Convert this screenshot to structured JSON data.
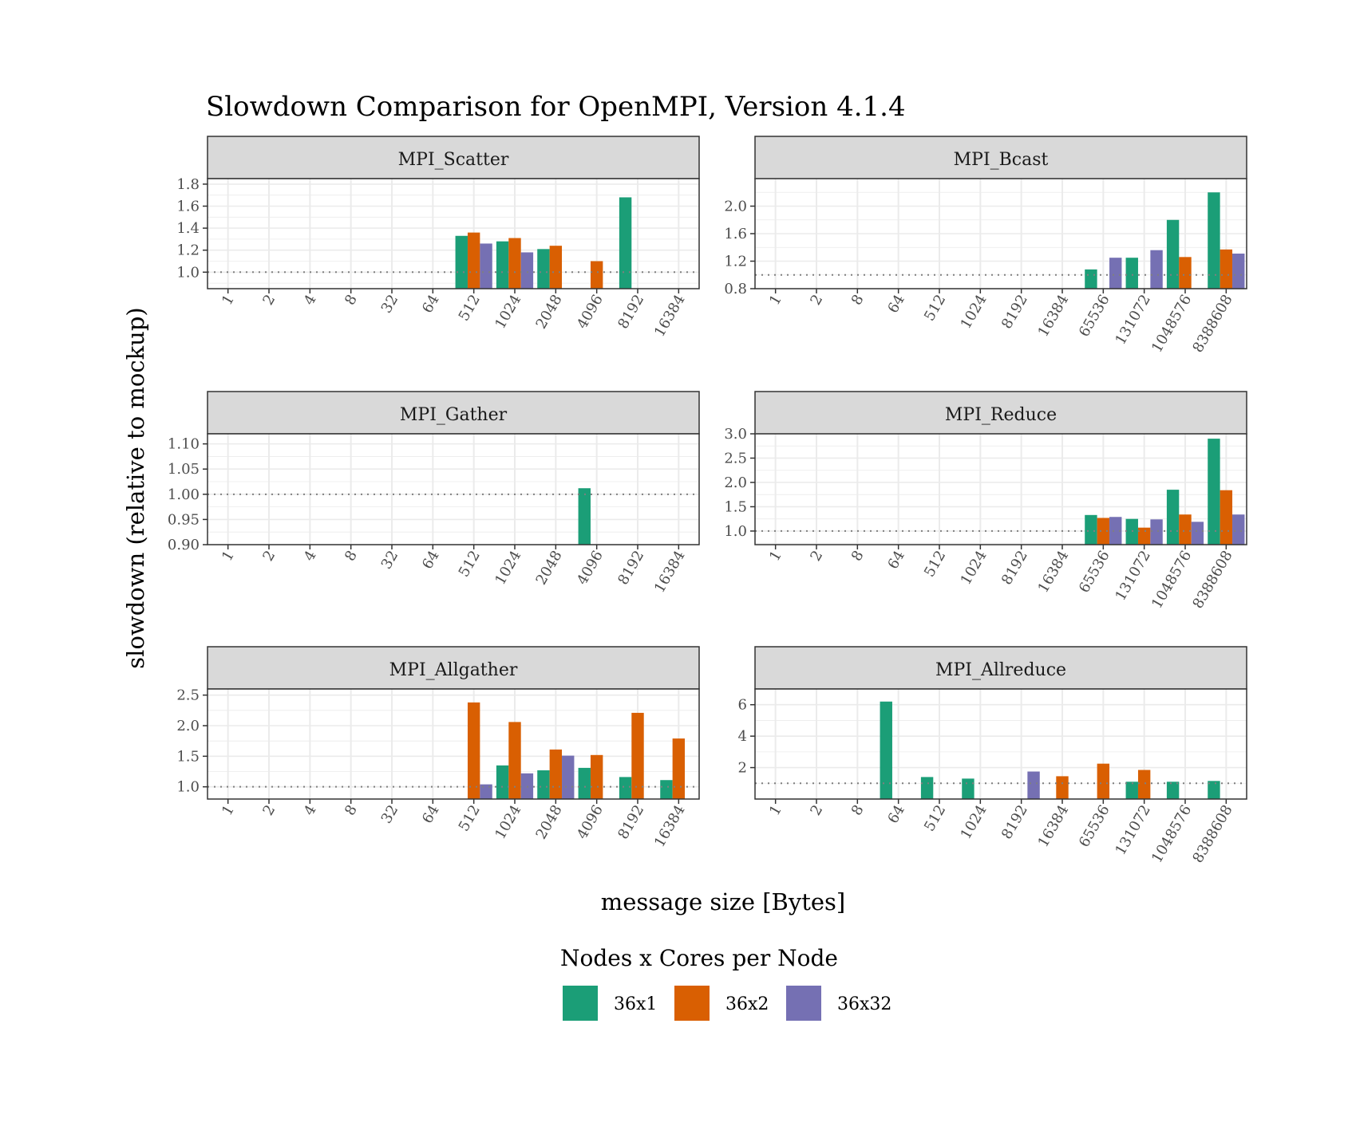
{
  "title": "Slowdown Comparison for OpenMPI, Version 4.1.4",
  "ylabel": "slowdown (relative to mockup)",
  "xlabel": "message size [Bytes]",
  "legend": {
    "title": "Nodes x Cores per Node",
    "position": "bottom",
    "entries": [
      {
        "name": "36x1",
        "color": "#1b9e77"
      },
      {
        "name": "36x2",
        "color": "#d95f02"
      },
      {
        "name": "36x32",
        "color": "#7570b3"
      }
    ]
  },
  "chart_data": [
    {
      "type": "bar",
      "title": "MPI_Scatter",
      "categories": [
        "1",
        "2",
        "4",
        "8",
        "32",
        "64",
        "512",
        "1024",
        "2048",
        "4096",
        "8192",
        "16384"
      ],
      "ylim": [
        0.85,
        1.85
      ],
      "yticks": [
        1.0,
        1.2,
        1.4,
        1.6,
        1.8
      ],
      "reference_line": 1.0,
      "series": [
        {
          "name": "36x1",
          "values": [
            null,
            null,
            null,
            null,
            null,
            null,
            1.33,
            1.28,
            1.21,
            null,
            1.68,
            null
          ]
        },
        {
          "name": "36x2",
          "values": [
            null,
            null,
            null,
            null,
            null,
            null,
            1.36,
            1.31,
            1.24,
            1.1,
            null,
            null
          ]
        },
        {
          "name": "36x32",
          "values": [
            null,
            null,
            null,
            null,
            null,
            null,
            1.26,
            1.18,
            null,
            null,
            null,
            null
          ]
        }
      ]
    },
    {
      "type": "bar",
      "title": "MPI_Bcast",
      "categories": [
        "1",
        "2",
        "8",
        "64",
        "512",
        "1024",
        "8192",
        "16384",
        "65536",
        "131072",
        "1048576",
        "8388608"
      ],
      "ylim": [
        0.8,
        2.4
      ],
      "yticks": [
        0.8,
        1.2,
        1.6,
        2.0
      ],
      "reference_line": 1.0,
      "series": [
        {
          "name": "36x1",
          "values": [
            null,
            null,
            null,
            null,
            null,
            null,
            null,
            null,
            1.08,
            1.25,
            1.8,
            2.2
          ]
        },
        {
          "name": "36x2",
          "values": [
            null,
            null,
            null,
            null,
            null,
            null,
            null,
            null,
            null,
            null,
            1.26,
            1.37
          ]
        },
        {
          "name": "36x32",
          "values": [
            null,
            null,
            null,
            null,
            null,
            null,
            null,
            null,
            1.25,
            1.36,
            null,
            1.31
          ]
        }
      ]
    },
    {
      "type": "bar",
      "title": "MPI_Gather",
      "categories": [
        "1",
        "2",
        "4",
        "8",
        "32",
        "64",
        "512",
        "1024",
        "2048",
        "4096",
        "8192",
        "16384"
      ],
      "ylim": [
        0.9,
        1.12
      ],
      "yticks": [
        0.9,
        0.95,
        1.0,
        1.05,
        1.1
      ],
      "ytick_labels": [
        "0.90",
        "0.95",
        "1.00",
        "1.05",
        "1.10"
      ],
      "reference_line": 1.0,
      "series": [
        {
          "name": "36x1",
          "values": [
            null,
            null,
            null,
            null,
            null,
            null,
            null,
            null,
            null,
            1.012,
            null,
            null
          ]
        },
        {
          "name": "36x2",
          "values": [
            null,
            null,
            null,
            null,
            null,
            null,
            null,
            null,
            null,
            null,
            null,
            null
          ]
        },
        {
          "name": "36x32",
          "values": [
            null,
            null,
            null,
            null,
            null,
            null,
            null,
            null,
            null,
            null,
            null,
            null
          ]
        }
      ]
    },
    {
      "type": "bar",
      "title": "MPI_Reduce",
      "categories": [
        "1",
        "2",
        "8",
        "64",
        "512",
        "1024",
        "8192",
        "16384",
        "65536",
        "131072",
        "1048576",
        "8388608"
      ],
      "ylim": [
        0.72,
        3.0
      ],
      "yticks": [
        1.0,
        1.5,
        2.0,
        2.5,
        3.0
      ],
      "reference_line": 1.0,
      "series": [
        {
          "name": "36x1",
          "values": [
            null,
            null,
            null,
            null,
            null,
            null,
            null,
            null,
            1.33,
            1.25,
            1.85,
            2.9
          ]
        },
        {
          "name": "36x2",
          "values": [
            null,
            null,
            null,
            null,
            null,
            null,
            null,
            null,
            1.27,
            1.07,
            1.34,
            1.84
          ]
        },
        {
          "name": "36x32",
          "values": [
            null,
            null,
            null,
            null,
            null,
            null,
            null,
            null,
            1.29,
            1.24,
            1.19,
            1.34
          ]
        }
      ]
    },
    {
      "type": "bar",
      "title": "MPI_Allgather",
      "categories": [
        "1",
        "2",
        "4",
        "8",
        "32",
        "64",
        "512",
        "1024",
        "2048",
        "4096",
        "8192",
        "16384"
      ],
      "ylim": [
        0.8,
        2.6
      ],
      "yticks": [
        1.0,
        1.5,
        2.0,
        2.5
      ],
      "reference_line": 1.0,
      "series": [
        {
          "name": "36x1",
          "values": [
            null,
            null,
            null,
            null,
            null,
            null,
            null,
            1.35,
            1.27,
            1.31,
            1.16,
            1.11
          ]
        },
        {
          "name": "36x2",
          "values": [
            null,
            null,
            null,
            null,
            null,
            null,
            2.38,
            2.06,
            1.61,
            1.52,
            2.21,
            1.79
          ]
        },
        {
          "name": "36x32",
          "values": [
            null,
            null,
            null,
            null,
            null,
            null,
            1.04,
            1.22,
            1.51,
            null,
            null,
            null
          ]
        }
      ]
    },
    {
      "type": "bar",
      "title": "MPI_Allreduce",
      "categories": [
        "1",
        "2",
        "8",
        "64",
        "512",
        "1024",
        "8192",
        "16384",
        "65536",
        "131072",
        "1048576",
        "8388608"
      ],
      "ylim": [
        0.0,
        7.0
      ],
      "yticks": [
        2,
        4,
        6
      ],
      "reference_line": 1.0,
      "series": [
        {
          "name": "36x1",
          "values": [
            null,
            null,
            null,
            6.2,
            1.4,
            1.3,
            null,
            null,
            null,
            1.1,
            1.1,
            1.15
          ]
        },
        {
          "name": "36x2",
          "values": [
            null,
            null,
            null,
            null,
            null,
            null,
            null,
            1.45,
            2.25,
            1.85,
            null,
            null
          ]
        },
        {
          "name": "36x32",
          "values": [
            null,
            null,
            null,
            null,
            null,
            null,
            1.75,
            null,
            null,
            null,
            null,
            null
          ]
        }
      ]
    }
  ]
}
